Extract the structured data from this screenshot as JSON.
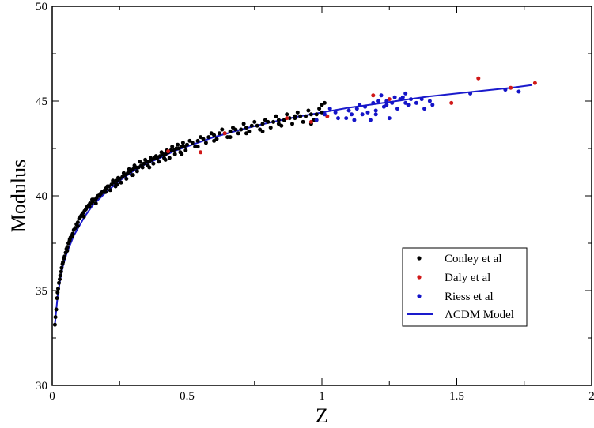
{
  "chart_data": {
    "type": "scatter",
    "xlabel": "Z",
    "ylabel": "Modulus",
    "xlim": [
      0,
      2
    ],
    "ylim": [
      30,
      50
    ],
    "x_ticks": [
      0,
      0.5,
      1,
      1.5,
      2
    ],
    "x_tick_labels": [
      "0",
      "0.5",
      "1",
      "1.5",
      "2"
    ],
    "y_ticks": [
      30,
      35,
      40,
      45,
      50
    ],
    "y_tick_labels": [
      "30",
      "35",
      "40",
      "45",
      "50"
    ],
    "grid": false,
    "legend_position": "lower-right",
    "colors": {
      "conley": "#000000",
      "daly": "#d01818",
      "riess": "#1414c8",
      "model": "#1a1acc"
    },
    "series": [
      {
        "name": "Conley et al",
        "kind": "scatter",
        "color": "#000000",
        "points": [
          [
            0.01,
            33.2
          ],
          [
            0.012,
            33.6
          ],
          [
            0.015,
            34.0
          ],
          [
            0.018,
            34.6
          ],
          [
            0.02,
            34.9
          ],
          [
            0.022,
            35.1
          ],
          [
            0.025,
            35.4
          ],
          [
            0.028,
            35.6
          ],
          [
            0.03,
            35.8
          ],
          [
            0.033,
            36.0
          ],
          [
            0.035,
            36.2
          ],
          [
            0.038,
            36.4
          ],
          [
            0.04,
            36.5
          ],
          [
            0.043,
            36.7
          ],
          [
            0.046,
            36.8
          ],
          [
            0.05,
            37.0
          ],
          [
            0.053,
            37.2
          ],
          [
            0.056,
            37.3
          ],
          [
            0.06,
            37.5
          ],
          [
            0.064,
            37.6
          ],
          [
            0.068,
            37.8
          ],
          [
            0.072,
            37.9
          ],
          [
            0.076,
            38.0
          ],
          [
            0.08,
            38.2
          ],
          [
            0.085,
            38.3
          ],
          [
            0.09,
            38.5
          ],
          [
            0.095,
            38.6
          ],
          [
            0.1,
            38.8
          ],
          [
            0.105,
            38.9
          ],
          [
            0.11,
            39.0
          ],
          [
            0.115,
            39.1
          ],
          [
            0.12,
            39.2
          ],
          [
            0.125,
            39.3
          ],
          [
            0.13,
            39.4
          ],
          [
            0.135,
            39.5
          ],
          [
            0.14,
            39.6
          ],
          [
            0.145,
            39.6
          ],
          [
            0.15,
            39.7
          ],
          [
            0.155,
            39.8
          ],
          [
            0.16,
            39.8
          ],
          [
            0.165,
            39.9
          ],
          [
            0.17,
            40.0
          ],
          [
            0.175,
            40.0
          ],
          [
            0.18,
            40.1
          ],
          [
            0.185,
            40.2
          ],
          [
            0.19,
            40.2
          ],
          [
            0.195,
            40.3
          ],
          [
            0.2,
            40.4
          ],
          [
            0.21,
            40.5
          ],
          [
            0.22,
            40.6
          ],
          [
            0.23,
            40.7
          ],
          [
            0.24,
            40.8
          ],
          [
            0.25,
            40.9
          ],
          [
            0.26,
            41.0
          ],
          [
            0.27,
            41.1
          ],
          [
            0.28,
            41.2
          ],
          [
            0.29,
            41.3
          ],
          [
            0.3,
            41.4
          ],
          [
            0.31,
            41.5
          ],
          [
            0.32,
            41.5
          ],
          [
            0.33,
            41.6
          ],
          [
            0.34,
            41.7
          ],
          [
            0.35,
            41.8
          ],
          [
            0.36,
            41.8
          ],
          [
            0.37,
            41.9
          ],
          [
            0.38,
            42.0
          ],
          [
            0.39,
            42.0
          ],
          [
            0.4,
            42.1
          ],
          [
            0.41,
            42.2
          ],
          [
            0.42,
            42.2
          ],
          [
            0.43,
            42.3
          ],
          [
            0.44,
            42.4
          ],
          [
            0.45,
            42.4
          ],
          [
            0.46,
            42.5
          ],
          [
            0.47,
            42.5
          ],
          [
            0.48,
            42.6
          ],
          [
            0.49,
            42.6
          ],
          [
            0.5,
            42.7
          ],
          [
            0.52,
            42.8
          ],
          [
            0.54,
            42.9
          ],
          [
            0.56,
            43.0
          ],
          [
            0.58,
            43.1
          ],
          [
            0.6,
            43.2
          ],
          [
            0.62,
            43.3
          ],
          [
            0.64,
            43.3
          ],
          [
            0.66,
            43.4
          ],
          [
            0.68,
            43.5
          ],
          [
            0.7,
            43.5
          ],
          [
            0.72,
            43.6
          ],
          [
            0.74,
            43.7
          ],
          [
            0.76,
            43.7
          ],
          [
            0.78,
            43.8
          ],
          [
            0.8,
            43.9
          ],
          [
            0.82,
            43.9
          ],
          [
            0.84,
            44.0
          ],
          [
            0.86,
            44.0
          ],
          [
            0.88,
            44.1
          ],
          [
            0.9,
            44.1
          ],
          [
            0.92,
            44.2
          ],
          [
            0.94,
            44.2
          ],
          [
            0.96,
            44.3
          ],
          [
            0.98,
            44.3
          ],
          [
            1.0,
            44.4
          ],
          [
            0.055,
            37.1
          ],
          [
            0.065,
            37.7
          ],
          [
            0.075,
            37.85
          ],
          [
            0.095,
            38.4
          ],
          [
            0.108,
            38.95
          ],
          [
            0.118,
            38.9
          ],
          [
            0.128,
            39.4
          ],
          [
            0.138,
            39.45
          ],
          [
            0.148,
            39.8
          ],
          [
            0.162,
            39.6
          ],
          [
            0.178,
            40.1
          ],
          [
            0.198,
            40.2
          ],
          [
            0.205,
            40.5
          ],
          [
            0.215,
            40.3
          ],
          [
            0.225,
            40.8
          ],
          [
            0.235,
            40.5
          ],
          [
            0.245,
            40.95
          ],
          [
            0.255,
            40.7
          ],
          [
            0.265,
            41.2
          ],
          [
            0.275,
            40.9
          ],
          [
            0.285,
            41.4
          ],
          [
            0.295,
            41.1
          ],
          [
            0.305,
            41.6
          ],
          [
            0.315,
            41.3
          ],
          [
            0.325,
            41.8
          ],
          [
            0.335,
            41.5
          ],
          [
            0.345,
            41.9
          ],
          [
            0.355,
            41.6
          ],
          [
            0.365,
            42.0
          ],
          [
            0.375,
            41.7
          ],
          [
            0.385,
            42.1
          ],
          [
            0.395,
            41.8
          ],
          [
            0.405,
            42.3
          ],
          [
            0.415,
            42.0
          ],
          [
            0.425,
            42.4
          ],
          [
            0.435,
            42.0
          ],
          [
            0.445,
            42.6
          ],
          [
            0.455,
            42.2
          ],
          [
            0.465,
            42.7
          ],
          [
            0.475,
            42.3
          ],
          [
            0.485,
            42.8
          ],
          [
            0.495,
            42.4
          ],
          [
            0.51,
            42.9
          ],
          [
            0.53,
            42.6
          ],
          [
            0.55,
            43.1
          ],
          [
            0.57,
            42.8
          ],
          [
            0.59,
            43.3
          ],
          [
            0.61,
            43.0
          ],
          [
            0.63,
            43.5
          ],
          [
            0.65,
            43.1
          ],
          [
            0.67,
            43.6
          ],
          [
            0.69,
            43.3
          ],
          [
            0.71,
            43.8
          ],
          [
            0.73,
            43.4
          ],
          [
            0.75,
            43.9
          ],
          [
            0.77,
            43.5
          ],
          [
            0.79,
            44.0
          ],
          [
            0.81,
            43.6
          ],
          [
            0.83,
            44.2
          ],
          [
            0.85,
            43.7
          ],
          [
            0.87,
            44.3
          ],
          [
            0.89,
            43.8
          ],
          [
            0.91,
            44.4
          ],
          [
            0.93,
            43.9
          ],
          [
            0.95,
            44.5
          ],
          [
            0.97,
            44.0
          ],
          [
            0.99,
            44.6
          ],
          [
            1.0,
            44.8
          ],
          [
            1.01,
            44.9
          ],
          [
            0.96,
            43.8
          ],
          [
            0.9,
            44.2
          ],
          [
            0.84,
            43.8
          ],
          [
            0.78,
            43.4
          ],
          [
            0.72,
            43.3
          ],
          [
            0.66,
            43.1
          ],
          [
            0.6,
            42.9
          ],
          [
            0.54,
            42.6
          ],
          [
            0.48,
            42.2
          ],
          [
            0.42,
            41.9
          ],
          [
            0.36,
            41.5
          ],
          [
            0.3,
            41.1
          ],
          [
            0.24,
            40.6
          ]
        ]
      },
      {
        "name": "Daly et al",
        "kind": "scatter",
        "color": "#d01818",
        "points": [
          [
            0.43,
            42.35
          ],
          [
            0.55,
            42.3
          ],
          [
            0.64,
            43.3
          ],
          [
            0.87,
            44.1
          ],
          [
            0.96,
            43.9
          ],
          [
            1.02,
            44.2
          ],
          [
            1.19,
            45.3
          ],
          [
            1.25,
            45.1
          ],
          [
            1.48,
            44.9
          ],
          [
            1.58,
            46.2
          ],
          [
            1.7,
            45.7
          ],
          [
            1.79,
            45.95
          ]
        ]
      },
      {
        "name": "Riess et al",
        "kind": "scatter",
        "color": "#1414c8",
        "points": [
          [
            0.98,
            44.0
          ],
          [
            1.01,
            44.3
          ],
          [
            1.03,
            44.6
          ],
          [
            1.05,
            44.4
          ],
          [
            1.06,
            44.1
          ],
          [
            1.09,
            44.1
          ],
          [
            1.1,
            44.5
          ],
          [
            1.12,
            44.0
          ],
          [
            1.13,
            44.6
          ],
          [
            1.14,
            44.8
          ],
          [
            1.15,
            44.3
          ],
          [
            1.17,
            44.4
          ],
          [
            1.18,
            44.0
          ],
          [
            1.19,
            44.9
          ],
          [
            1.2,
            44.5
          ],
          [
            1.21,
            45.0
          ],
          [
            1.22,
            45.3
          ],
          [
            1.23,
            44.7
          ],
          [
            1.24,
            45.0
          ],
          [
            1.25,
            44.1
          ],
          [
            1.26,
            44.9
          ],
          [
            1.27,
            45.2
          ],
          [
            1.28,
            44.6
          ],
          [
            1.3,
            45.2
          ],
          [
            1.31,
            45.4
          ],
          [
            1.32,
            44.8
          ],
          [
            1.33,
            45.1
          ],
          [
            1.35,
            44.9
          ],
          [
            1.37,
            45.1
          ],
          [
            1.38,
            44.6
          ],
          [
            1.4,
            45.0
          ],
          [
            1.41,
            44.8
          ],
          [
            1.55,
            45.4
          ],
          [
            1.68,
            45.6
          ],
          [
            1.73,
            45.5
          ],
          [
            1.31,
            44.9
          ],
          [
            1.29,
            45.1
          ],
          [
            1.24,
            44.8
          ],
          [
            1.2,
            44.3
          ],
          [
            1.16,
            44.7
          ],
          [
            1.11,
            44.3
          ]
        ]
      },
      {
        "name": "ΛCDM Model",
        "kind": "line",
        "color": "#1a1acc",
        "points": [
          [
            0.01,
            33.2
          ],
          [
            0.02,
            34.7
          ],
          [
            0.03,
            35.6
          ],
          [
            0.04,
            36.3
          ],
          [
            0.05,
            36.8
          ],
          [
            0.06,
            37.2
          ],
          [
            0.08,
            37.9
          ],
          [
            0.1,
            38.4
          ],
          [
            0.12,
            38.9
          ],
          [
            0.15,
            39.5
          ],
          [
            0.2,
            40.2
          ],
          [
            0.25,
            40.8
          ],
          [
            0.3,
            41.3
          ],
          [
            0.35,
            41.7
          ],
          [
            0.4,
            42.0
          ],
          [
            0.45,
            42.35
          ],
          [
            0.5,
            42.6
          ],
          [
            0.6,
            43.1
          ],
          [
            0.7,
            43.5
          ],
          [
            0.8,
            43.85
          ],
          [
            0.9,
            44.15
          ],
          [
            1.0,
            44.4
          ],
          [
            1.1,
            44.65
          ],
          [
            1.2,
            44.85
          ],
          [
            1.3,
            45.05
          ],
          [
            1.4,
            45.25
          ],
          [
            1.5,
            45.4
          ],
          [
            1.6,
            45.55
          ],
          [
            1.7,
            45.7
          ],
          [
            1.78,
            45.85
          ]
        ]
      }
    ]
  }
}
